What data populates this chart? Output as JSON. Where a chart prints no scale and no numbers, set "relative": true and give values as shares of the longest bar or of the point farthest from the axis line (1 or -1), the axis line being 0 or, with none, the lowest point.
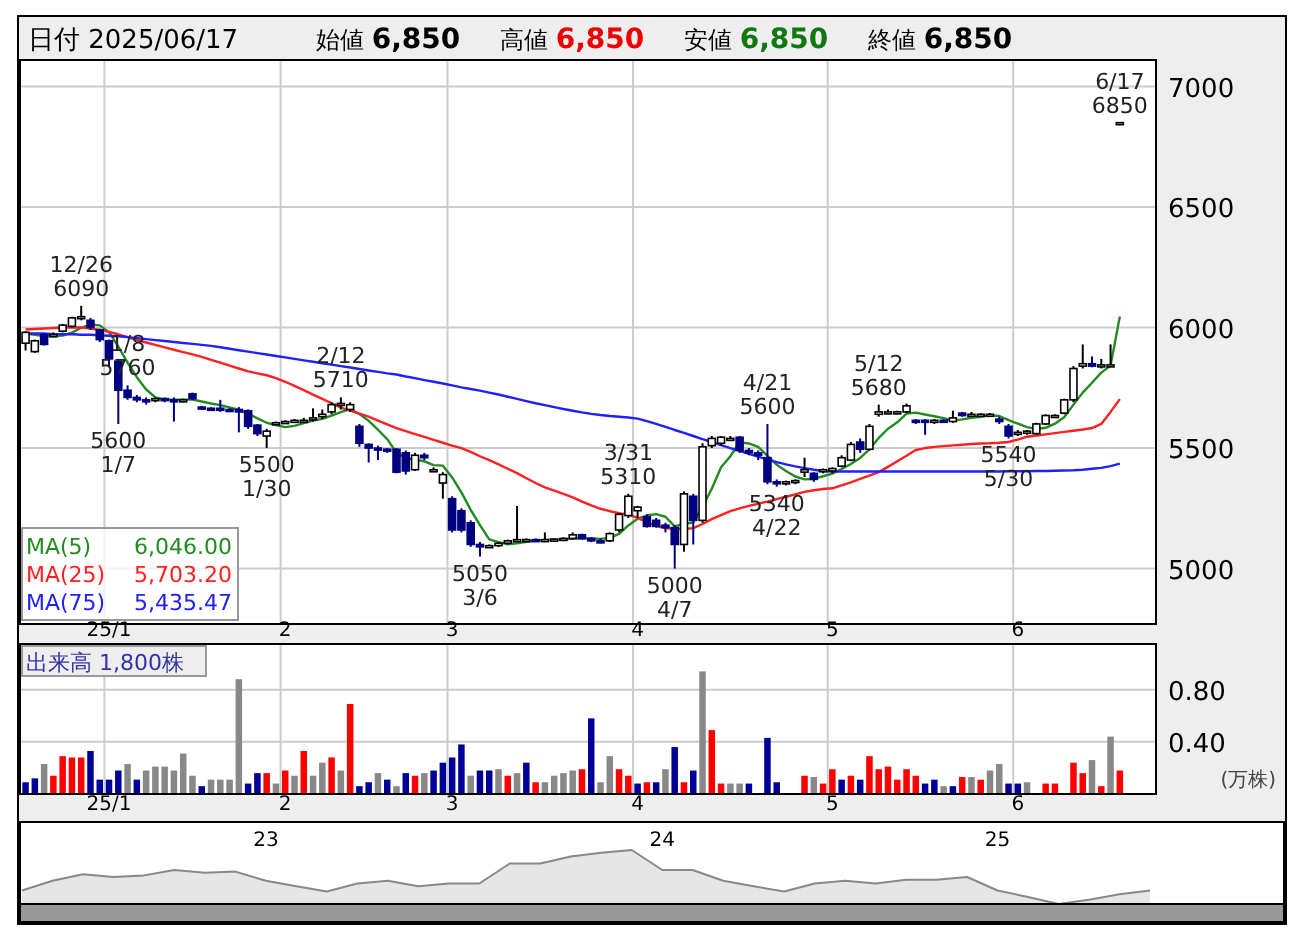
{
  "chart_data": [
    {
      "type": "other",
      "title": "日付 2025/06/17",
      "annotations": [
        "始値 6,850",
        "高値 6,850",
        "安値 6,850",
        "終値 6,850"
      ]
    },
    {
      "type": "candlestick",
      "categories": [
        null,
        null,
        null,
        null,
        null,
        null,
        null,
        null,
        null,
        "25/1",
        null,
        null,
        null,
        null,
        null,
        null,
        null,
        null,
        null,
        null,
        null,
        null,
        null,
        null,
        null,
        null,
        null,
        null,
        "2",
        null,
        null,
        null,
        null,
        null,
        null,
        null,
        null,
        null,
        null,
        null,
        null,
        null,
        null,
        null,
        null,
        null,
        "3",
        null,
        null,
        null,
        null,
        null,
        null,
        null,
        null,
        null,
        null,
        null,
        null,
        null,
        null,
        null,
        null,
        null,
        null,
        null,
        "4",
        null,
        null,
        null,
        null,
        null,
        null,
        null,
        null,
        null,
        null,
        null,
        null,
        null,
        null,
        null,
        null,
        null,
        null,
        null,
        null,
        "5",
        null,
        null,
        null,
        null,
        null,
        null,
        null,
        null,
        null,
        null,
        null,
        null,
        null,
        null,
        null,
        null,
        null,
        null,
        null,
        "6",
        null,
        null,
        null,
        null,
        null,
        null,
        null,
        null,
        null,
        null,
        null
      ],
      "ohlc": [
        [
          5935,
          5985,
          5905,
          5980
        ],
        [
          5900,
          5950,
          5895,
          5945
        ],
        [
          5970,
          5975,
          5925,
          5930
        ],
        [
          5965,
          5980,
          5960,
          5970
        ],
        [
          5985,
          6015,
          5980,
          6010
        ],
        [
          6005,
          6045,
          6000,
          6040
        ],
        [
          6040,
          6090,
          6030,
          6045
        ],
        [
          6030,
          6040,
          5990,
          6000
        ],
        [
          5990,
          5995,
          5940,
          5950
        ],
        [
          5945,
          5950,
          5840,
          5870
        ],
        [
          5860,
          5870,
          5600,
          5740
        ],
        [
          5740,
          5760,
          5700,
          5710
        ],
        [
          5710,
          5720,
          5690,
          5700
        ],
        [
          5700,
          5710,
          5680,
          5695
        ],
        [
          5700,
          5710,
          5690,
          5705
        ],
        [
          5705,
          5710,
          5690,
          5700
        ],
        [
          5700,
          5710,
          5610,
          5695
        ],
        [
          5695,
          5705,
          5690,
          5700
        ],
        [
          5725,
          5730,
          5700,
          5705
        ],
        [
          5670,
          5675,
          5660,
          5665
        ],
        [
          5665,
          5670,
          5655,
          5660
        ],
        [
          5665,
          5700,
          5650,
          5660
        ],
        [
          5660,
          5665,
          5650,
          5655
        ],
        [
          5660,
          5670,
          5565,
          5650
        ],
        [
          5655,
          5660,
          5580,
          5590
        ],
        [
          5595,
          5600,
          5550,
          5560
        ],
        [
          5550,
          5580,
          5500,
          5570
        ],
        [
          5600,
          5610,
          5595,
          5605
        ],
        [
          5605,
          5615,
          5600,
          5610
        ],
        [
          5610,
          5620,
          5605,
          5615
        ],
        [
          5615,
          5625,
          5605,
          5615
        ],
        [
          5620,
          5665,
          5610,
          5625
        ],
        [
          5630,
          5660,
          5620,
          5640
        ],
        [
          5650,
          5690,
          5640,
          5680
        ],
        [
          5680,
          5710,
          5660,
          5685
        ],
        [
          5660,
          5690,
          5650,
          5680
        ],
        [
          5590,
          5600,
          5505,
          5520
        ],
        [
          5515,
          5520,
          5440,
          5500
        ],
        [
          5500,
          5510,
          5450,
          5495
        ],
        [
          5495,
          5500,
          5480,
          5490
        ],
        [
          5495,
          5500,
          5395,
          5400
        ],
        [
          5480,
          5490,
          5390,
          5405
        ],
        [
          5410,
          5480,
          5405,
          5470
        ],
        [
          5470,
          5480,
          5450,
          5460
        ],
        [
          5410,
          5420,
          5400,
          5410
        ],
        [
          5355,
          5400,
          5290,
          5390
        ],
        [
          5290,
          5300,
          5150,
          5160
        ],
        [
          5240,
          5250,
          5150,
          5160
        ],
        [
          5190,
          5200,
          5090,
          5100
        ],
        [
          5100,
          5110,
          5050,
          5090
        ],
        [
          5090,
          5100,
          5085,
          5095
        ],
        [
          5095,
          5110,
          5090,
          5105
        ],
        [
          5105,
          5120,
          5100,
          5115
        ],
        [
          5115,
          5260,
          5110,
          5120
        ],
        [
          5120,
          5125,
          5110,
          5120
        ],
        [
          5120,
          5125,
          5115,
          5118
        ],
        [
          5118,
          5150,
          5110,
          5120
        ],
        [
          5120,
          5125,
          5115,
          5122
        ],
        [
          5122,
          5130,
          5115,
          5125
        ],
        [
          5125,
          5150,
          5120,
          5140
        ],
        [
          5140,
          5145,
          5120,
          5125
        ],
        [
          5125,
          5130,
          5110,
          5115
        ],
        [
          5115,
          5125,
          5105,
          5110
        ],
        [
          5115,
          5150,
          5110,
          5145
        ],
        [
          5160,
          5230,
          5150,
          5225
        ],
        [
          5220,
          5310,
          5210,
          5300
        ],
        [
          5240,
          5260,
          5210,
          5255
        ],
        [
          5215,
          5225,
          5170,
          5175
        ],
        [
          5200,
          5210,
          5170,
          5175
        ],
        [
          5180,
          5190,
          5150,
          5170
        ],
        [
          5170,
          5180,
          5000,
          5100
        ],
        [
          5100,
          5320,
          5070,
          5310
        ],
        [
          5300,
          5310,
          5100,
          5200
        ],
        [
          5200,
          5520,
          5190,
          5505
        ],
        [
          5510,
          5550,
          5500,
          5540
        ],
        [
          5520,
          5550,
          5510,
          5545
        ],
        [
          5540,
          5550,
          5530,
          5540
        ],
        [
          5545,
          5550,
          5480,
          5490
        ],
        [
          5490,
          5500,
          5470,
          5480
        ],
        [
          5480,
          5490,
          5450,
          5470
        ],
        [
          5460,
          5600,
          5350,
          5360
        ],
        [
          5360,
          5370,
          5340,
          5355
        ],
        [
          5355,
          5365,
          5345,
          5360
        ],
        [
          5360,
          5370,
          5350,
          5365
        ],
        [
          5400,
          5460,
          5380,
          5410
        ],
        [
          5395,
          5400,
          5360,
          5370
        ],
        [
          5405,
          5415,
          5395,
          5410
        ],
        [
          5405,
          5420,
          5395,
          5415
        ],
        [
          5425,
          5470,
          5420,
          5460
        ],
        [
          5450,
          5525,
          5445,
          5515
        ],
        [
          5525,
          5540,
          5480,
          5495
        ],
        [
          5495,
          5600,
          5490,
          5590
        ],
        [
          5640,
          5680,
          5630,
          5650
        ],
        [
          5650,
          5660,
          5640,
          5650
        ],
        [
          5645,
          5655,
          5640,
          5650
        ],
        [
          5650,
          5685,
          5645,
          5675
        ],
        [
          5615,
          5620,
          5600,
          5610
        ],
        [
          5615,
          5620,
          5555,
          5610
        ],
        [
          5610,
          5620,
          5600,
          5615
        ],
        [
          5615,
          5620,
          5605,
          5610
        ],
        [
          5610,
          5655,
          5605,
          5625
        ],
        [
          5645,
          5650,
          5630,
          5635
        ],
        [
          5640,
          5650,
          5630,
          5640
        ],
        [
          5640,
          5645,
          5635,
          5640
        ],
        [
          5640,
          5645,
          5635,
          5640
        ],
        [
          5620,
          5630,
          5600,
          5610
        ],
        [
          5590,
          5600,
          5540,
          5550
        ],
        [
          5560,
          5575,
          5550,
          5565
        ],
        [
          5565,
          5575,
          5555,
          5570
        ],
        [
          5560,
          5605,
          5555,
          5600
        ],
        [
          5600,
          5640,
          5595,
          5635
        ],
        [
          5635,
          5640,
          5630,
          5635
        ],
        [
          5645,
          5705,
          5640,
          5700
        ],
        [
          5700,
          5840,
          5690,
          5830
        ],
        [
          5840,
          5930,
          5830,
          5850
        ],
        [
          5850,
          5880,
          5835,
          5840
        ],
        [
          5840,
          5870,
          5830,
          5845
        ],
        [
          5845,
          5930,
          5840,
          5845
        ],
        [
          6850,
          6850,
          6850,
          6850
        ]
      ],
      "series": [
        {
          "name": "MA(5)",
          "type": "line",
          "color": "#228b22",
          "values": [
            5975,
            5970,
            5965,
            5965,
            5967,
            5979,
            5999,
            6013,
            6009,
            5981,
            5921,
            5854,
            5794,
            5743,
            5710,
            5702,
            5701,
            5701,
            5701,
            5693,
            5685,
            5678,
            5669,
            5658,
            5643,
            5623,
            5605,
            5595,
            5587,
            5592,
            5603,
            5614,
            5621,
            5635,
            5649,
            5662,
            5641,
            5613,
            5576,
            5537,
            5481,
            5458,
            5452,
            5445,
            5429,
            5427,
            5378,
            5316,
            5244,
            5180,
            5121,
            5110,
            5101,
            5105,
            5111,
            5116,
            5119,
            5120,
            5121,
            5125,
            5126,
            5125,
            5123,
            5127,
            5144,
            5179,
            5207,
            5220,
            5226,
            5215,
            5175,
            5186,
            5191,
            5257,
            5331,
            5420,
            5466,
            5524,
            5519,
            5505,
            5468,
            5431,
            5405,
            5382,
            5370,
            5372,
            5383,
            5394,
            5413,
            5434,
            5459,
            5495,
            5542,
            5580,
            5607,
            5643,
            5647,
            5639,
            5632,
            5624,
            5614,
            5619,
            5625,
            5630,
            5636,
            5633,
            5616,
            5601,
            5587,
            5579,
            5584,
            5601,
            5628,
            5680,
            5730,
            5771,
            5813,
            5842,
            6046
          ]
        },
        {
          "name": "MA(25)",
          "type": "line",
          "color": "#ff2020",
          "values": [
            5992,
            5994,
            5996,
            5998,
            6000,
            6000,
            6000,
            5996,
            5990,
            5982,
            5972,
            5960,
            5948,
            5938,
            5928,
            5918,
            5908,
            5898,
            5889,
            5878,
            5866,
            5854,
            5842,
            5830,
            5818,
            5810,
            5802,
            5790,
            5775,
            5758,
            5740,
            5722,
            5704,
            5686,
            5668,
            5655,
            5643,
            5630,
            5614,
            5598,
            5583,
            5570,
            5558,
            5546,
            5534,
            5522,
            5510,
            5500,
            5484,
            5466,
            5450,
            5432,
            5414,
            5396,
            5375,
            5355,
            5337,
            5323,
            5310,
            5295,
            5278,
            5262,
            5248,
            5238,
            5230,
            5224,
            5210,
            5192,
            5176,
            5168,
            5164,
            5164,
            5168,
            5185,
            5205,
            5222,
            5238,
            5250,
            5260,
            5269,
            5278,
            5288,
            5298,
            5308,
            5318,
            5325,
            5330,
            5333,
            5345,
            5358,
            5372,
            5386,
            5400,
            5422,
            5445,
            5468,
            5492,
            5500,
            5505,
            5508,
            5511,
            5514,
            5517,
            5519,
            5520,
            5522,
            5525,
            5535,
            5547,
            5552,
            5557,
            5562,
            5567,
            5572,
            5577,
            5583,
            5600,
            5650,
            5703.2
          ]
        },
        {
          "name": "MA(75)",
          "type": "line",
          "color": "#2020ff",
          "values": [
            5975,
            5975,
            5975,
            5972,
            5972,
            5972,
            5970,
            5970,
            5968,
            5966,
            5964,
            5960,
            5956,
            5952,
            5948,
            5944,
            5940,
            5936,
            5932,
            5928,
            5924,
            5918,
            5912,
            5906,
            5900,
            5894,
            5888,
            5882,
            5876,
            5870,
            5864,
            5858,
            5852,
            5846,
            5840,
            5834,
            5828,
            5822,
            5816,
            5810,
            5805,
            5797,
            5790,
            5782,
            5775,
            5768,
            5760,
            5752,
            5745,
            5738,
            5730,
            5722,
            5713,
            5704,
            5695,
            5686,
            5678,
            5670,
            5662,
            5655,
            5648,
            5642,
            5637,
            5633,
            5630,
            5627,
            5622,
            5612,
            5600,
            5588,
            5575,
            5563,
            5550,
            5537,
            5525,
            5512,
            5500,
            5488,
            5476,
            5464,
            5452,
            5442,
            5432,
            5424,
            5417,
            5410,
            5405,
            5403,
            5403,
            5403,
            5403,
            5403,
            5403,
            5403,
            5403,
            5403,
            5403,
            5403,
            5403,
            5403,
            5403,
            5403,
            5403,
            5403,
            5403,
            5403,
            5404,
            5404,
            5404,
            5405,
            5405,
            5406,
            5407,
            5408,
            5410,
            5414,
            5418,
            5425,
            5435.47
          ]
        }
      ],
      "ylim": [
        4770,
        7110
      ],
      "yticks": [
        5000,
        5500,
        6000,
        6500,
        7000
      ],
      "grid": true,
      "legend": "bottom left",
      "annotations": [
        "6,046.00",
        "5,703.20",
        "5,435.47",
        {
          "text": "12/26 6090",
          "y": 6090
        },
        {
          "text": "5600 1/7",
          "y": 5600
        },
        {
          "text": "1/8 5760",
          "y": 5760
        },
        {
          "text": "5500 1/30",
          "y": 5500
        },
        {
          "text": "2/12 5710",
          "y": 5710
        },
        {
          "text": "5050 3/6",
          "y": 5050
        },
        {
          "text": "3/31 5310",
          "y": 5310
        },
        {
          "text": "5000 4/7",
          "y": 5000
        },
        {
          "text": "4/21 5600",
          "y": 5600
        },
        {
          "text": "5340 4/22",
          "y": 5340
        },
        {
          "text": "5/12 5680",
          "y": 5680
        },
        {
          "text": "5540 5/30",
          "y": 5540
        },
        {
          "text": "6/17 6850",
          "y": 6850
        }
      ]
    },
    {
      "type": "bar",
      "title": "出来高 1,800株",
      "ylabel": "(万株)",
      "categories": [
        null,
        null,
        null,
        null,
        null,
        null,
        null,
        null,
        null,
        "25/1",
        null,
        null,
        null,
        null,
        null,
        null,
        null,
        null,
        null,
        null,
        null,
        null,
        null,
        null,
        null,
        null,
        null,
        null,
        "2",
        null,
        null,
        null,
        null,
        null,
        null,
        null,
        null,
        null,
        null,
        null,
        null,
        null,
        null,
        null,
        null,
        null,
        "3",
        null,
        null,
        null,
        null,
        null,
        null,
        null,
        null,
        null,
        null,
        null,
        null,
        null,
        null,
        null,
        null,
        null,
        null,
        null,
        "4",
        null,
        null,
        null,
        null,
        null,
        null,
        null,
        null,
        null,
        null,
        null,
        null,
        null,
        null,
        null,
        null,
        null,
        null,
        null,
        null,
        "5",
        null,
        null,
        null,
        null,
        null,
        null,
        null,
        null,
        null,
        null,
        null,
        null,
        null,
        null,
        null,
        null,
        null,
        null,
        null,
        "6",
        null,
        null,
        null,
        null,
        null,
        null,
        null,
        null,
        null,
        null,
        null
      ],
      "values": [
        0.09,
        0.12,
        0.23,
        0.14,
        0.29,
        0.28,
        0.28,
        0.33,
        0.11,
        0.11,
        0.18,
        0.23,
        0.11,
        0.18,
        0.21,
        0.21,
        0.18,
        0.31,
        0.14,
        0.06,
        0.11,
        0.11,
        0.11,
        0.88,
        0.08,
        0.16,
        0.16,
        0.08,
        0.18,
        0.14,
        0.33,
        0.14,
        0.24,
        0.28,
        0.18,
        0.69,
        0.06,
        0.09,
        0.16,
        0.11,
        0.06,
        0.16,
        0.14,
        0.16,
        0.18,
        0.24,
        0.28,
        0.38,
        0.14,
        0.18,
        0.18,
        0.19,
        0.14,
        0.16,
        0.24,
        0.09,
        0.09,
        0.14,
        0.16,
        0.18,
        0.19,
        0.58,
        0.09,
        0.29,
        0.19,
        0.14,
        0.08,
        0.09,
        0.09,
        0.19,
        0.36,
        0.09,
        0.18,
        0.94,
        0.49,
        0.08,
        0.08,
        0.08,
        0.08,
        0,
        0.43,
        0.09,
        0,
        0,
        0.14,
        0.13,
        0.08,
        0.19,
        0.11,
        0.14,
        0.11,
        0.29,
        0.19,
        0.21,
        0.11,
        0.19,
        0.14,
        0.08,
        0.11,
        0.06,
        0.06,
        0.13,
        0.13,
        0.11,
        0.18,
        0.23,
        0.08,
        0.08,
        0.09,
        0,
        0.08,
        0.08,
        0,
        0.24,
        0.16,
        0.26,
        0.06,
        0.44,
        0.18
      ],
      "colors": [
        "#000099",
        "#000099",
        "#888888",
        "#ff0000",
        "#ff0000",
        "#ff0000",
        "#ff0000",
        "#000099",
        "#000099",
        "#000099",
        "#000099",
        "#888888",
        "#000099",
        "#888888",
        "#888888",
        "#888888",
        "#888888",
        "#888888",
        "#888888",
        "#000099",
        "#888888",
        "#888888",
        "#888888",
        "#888888",
        "#000099",
        "#000099",
        "#ff0000",
        "#888888",
        "#ff0000",
        "#888888",
        "#ff0000",
        "#888888",
        "#888888",
        "#ff0000",
        "#888888",
        "#ff0000",
        "#000099",
        "#000099",
        "#888888",
        "#000099",
        "#888888",
        "#000099",
        "#ff0000",
        "#888888",
        "#000099",
        "#000099",
        "#000099",
        "#000099",
        "#888888",
        "#000099",
        "#000099",
        "#888888",
        "#ff0000",
        "#888888",
        "#000099",
        "#ff0000",
        "#888888",
        "#888888",
        "#888888",
        "#888888",
        "#ff0000",
        "#000099",
        "#888888",
        "#888888",
        "#ff0000",
        "#ff0000",
        "#000099",
        "#ff0000",
        "#000099",
        "#888888",
        "#000099",
        "#ff0000",
        "#000099",
        "#888888",
        "#ff0000",
        "#ff0000",
        "#888888",
        "#888888",
        "#000099",
        "#888888",
        "#000099",
        "#000099",
        "#888888",
        "#888888",
        "#ff0000",
        "#888888",
        "#ff0000",
        "#ff0000",
        "#000099",
        "#ff0000",
        "#000099",
        "#ff0000",
        "#ff0000",
        "#ff0000",
        "#ff0000",
        "#ff0000",
        "#ff0000",
        "#000099",
        "#000099",
        "#888888",
        "#000099",
        "#ff0000",
        "#888888",
        "#ff0000",
        "#888888",
        "#888888",
        "#000099",
        "#000099",
        "#888888",
        "#888888",
        "#ff0000",
        "#ff0000",
        "#888888",
        "#ff0000",
        "#ff0000",
        "#888888",
        "#ff0000",
        "#888888",
        "#ff0000"
      ],
      "ylim": [
        0,
        1.15
      ],
      "yticks": [
        {
          "value": 0.4,
          "label": "0.40"
        },
        {
          "value": 0.8,
          "label": "0.80"
        }
      ],
      "grid": true
    },
    {
      "type": "area",
      "relative": true,
      "tick_labels": "x",
      "color": "#888888",
      "categories": [
        null,
        null,
        null,
        null,
        null,
        null,
        null,
        null,
        "23",
        null,
        null,
        null,
        null,
        null,
        null,
        null,
        null,
        null,
        null,
        null,
        null,
        "24",
        null,
        null,
        null,
        null,
        null,
        null,
        null,
        null,
        null,
        null,
        "25",
        null,
        null,
        null,
        null,
        null
      ],
      "values": [
        0.25,
        0.43,
        0.55,
        0.5,
        0.53,
        0.63,
        0.58,
        0.6,
        0.43,
        0.33,
        0.23,
        0.38,
        0.43,
        0.33,
        0.38,
        0.38,
        0.75,
        0.75,
        0.88,
        0.95,
        1,
        0.63,
        0.63,
        0.43,
        0.33,
        0.23,
        0.38,
        0.43,
        0.38,
        0.45,
        0.45,
        0.5,
        0.25,
        0.13,
        0,
        0.08,
        0.18,
        0.25
      ]
    }
  ]
}
